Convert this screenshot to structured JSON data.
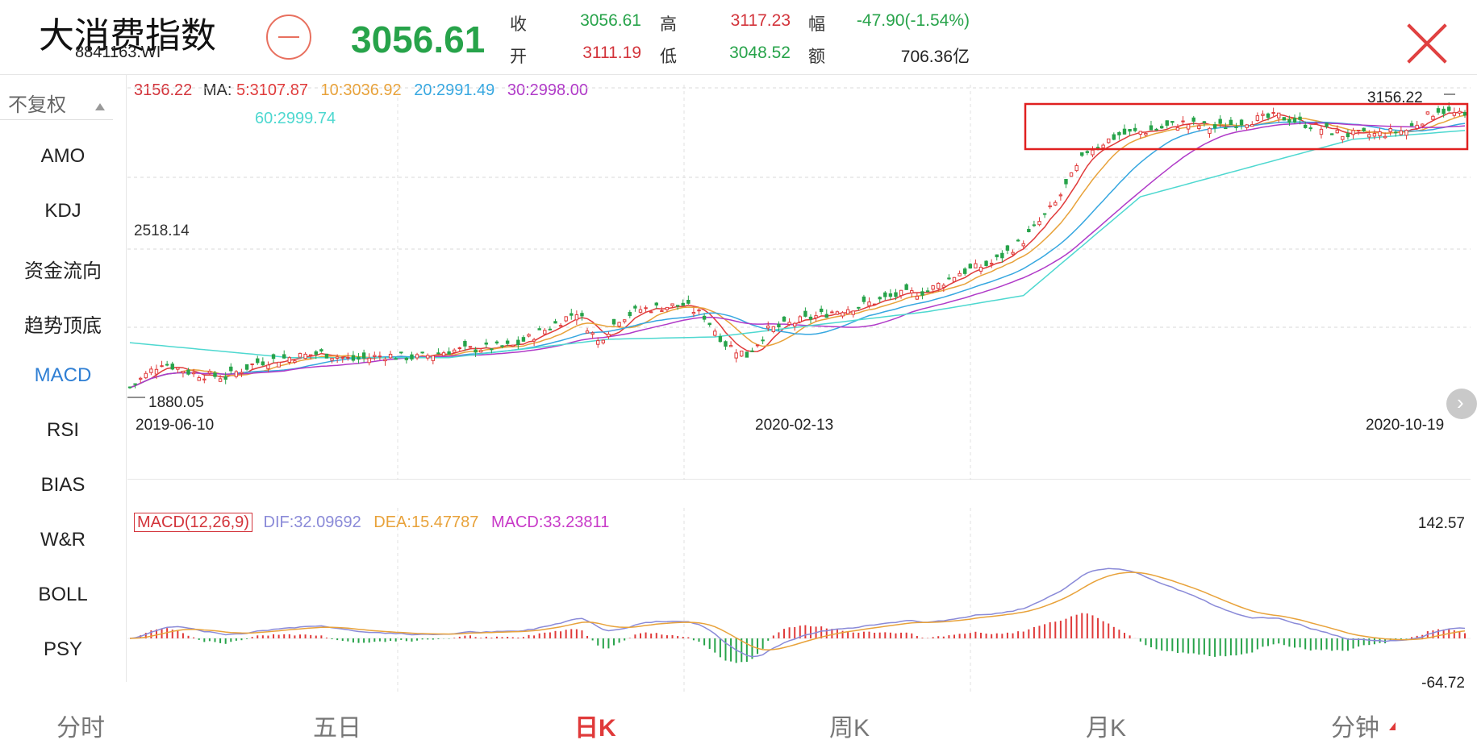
{
  "header": {
    "name": "大消费指数",
    "code": "8841163.WI",
    "price": "3056.61",
    "quote": [
      {
        "label": "收",
        "value": "3056.61",
        "color": "green"
      },
      {
        "label": "高",
        "value": "3117.23",
        "color": "red"
      },
      {
        "label": "幅",
        "value": "-47.90(-1.54%)",
        "color": "green"
      },
      {
        "label": "开",
        "value": "3111.19",
        "color": "red"
      },
      {
        "label": "低",
        "value": "3048.52",
        "color": "green"
      },
      {
        "label": "额",
        "value": "706.36亿",
        "color": "dark"
      }
    ]
  },
  "sidebar": {
    "fq_label": "不复权",
    "items": [
      {
        "label": "AMO"
      },
      {
        "label": "KDJ"
      },
      {
        "label": "资金流向"
      },
      {
        "label": "趋势顶底"
      },
      {
        "label": "MACD",
        "active": true
      },
      {
        "label": "RSI"
      },
      {
        "label": "BIAS"
      },
      {
        "label": "W&R"
      },
      {
        "label": "BOLL"
      },
      {
        "label": "PSY"
      }
    ]
  },
  "ma_legend": {
    "price": "3156.22",
    "prefix": "MA:",
    "ma5": "5:3107.87",
    "ma10": "10:3036.92",
    "ma20": "20:2991.49",
    "ma30": "30:2998.00",
    "ma60": "60:2999.74"
  },
  "macd_legend": {
    "name": "MACD(12,26,9)",
    "dif": "DIF:32.09692",
    "dea": "DEA:15.47787",
    "macd": "MACD:33.23811"
  },
  "colors": {
    "up": "#e03a3a",
    "down": "#27a34a",
    "ma5": "#e03a3a",
    "ma10": "#e8a23a",
    "ma20": "#36a7e0",
    "ma30": "#b03ac8",
    "ma60": "#4ed8d0",
    "dif": "#8a8ad8",
    "dea": "#e8a23a",
    "macd": "#c83ac8"
  },
  "chart_data": [
    {
      "type": "candlestick",
      "x_labels": [
        "2019-06-10",
        "2020-02-13",
        "2020-10-19"
      ],
      "y_labels": [
        "2518.14"
      ],
      "max_label": "3156.22",
      "min_label": "1880.05",
      "ylim": [
        1850,
        3200
      ],
      "trend": [
        [
          0,
          1900
        ],
        [
          6,
          2010
        ],
        [
          12,
          1960
        ],
        [
          18,
          1945
        ],
        [
          24,
          2010
        ],
        [
          30,
          2030
        ],
        [
          36,
          2050
        ],
        [
          42,
          2020
        ],
        [
          48,
          2040
        ],
        [
          54,
          2030
        ],
        [
          60,
          2060
        ],
        [
          66,
          2070
        ],
        [
          72,
          2080
        ],
        [
          78,
          2150
        ],
        [
          84,
          2230
        ],
        [
          88,
          2100
        ],
        [
          92,
          2200
        ],
        [
          96,
          2240
        ],
        [
          100,
          2250
        ],
        [
          104,
          2260
        ],
        [
          108,
          2210
        ],
        [
          112,
          2090
        ],
        [
          116,
          2040
        ],
        [
          120,
          2150
        ],
        [
          126,
          2190
        ],
        [
          132,
          2230
        ],
        [
          138,
          2260
        ],
        [
          144,
          2300
        ],
        [
          150,
          2320
        ],
        [
          156,
          2400
        ],
        [
          162,
          2440
        ],
        [
          168,
          2540
        ],
        [
          174,
          2700
        ],
        [
          180,
          2930
        ],
        [
          186,
          3000
        ],
        [
          192,
          3020
        ],
        [
          198,
          3050
        ],
        [
          204,
          3030
        ],
        [
          210,
          3060
        ],
        [
          216,
          3080
        ],
        [
          222,
          3040
        ],
        [
          228,
          3000
        ],
        [
          234,
          3000
        ],
        [
          240,
          3020
        ],
        [
          246,
          3110
        ],
        [
          252,
          3070
        ]
      ],
      "ma60_trend": [
        [
          0,
          2095
        ],
        [
          30,
          2030
        ],
        [
          60,
          2030
        ],
        [
          90,
          2110
        ],
        [
          110,
          2120
        ],
        [
          150,
          2230
        ],
        [
          168,
          2300
        ],
        [
          190,
          2730
        ],
        [
          230,
          2980
        ],
        [
          252,
          3020
        ]
      ],
      "highlight_box": "top-right"
    },
    {
      "type": "macd",
      "y_max_label": "142.57",
      "y_min_label": "-64.72",
      "ylim": [
        -64.72,
        142.57
      ]
    }
  ],
  "bottomnav": {
    "tabs": [
      {
        "label": "分时"
      },
      {
        "label": "五日"
      },
      {
        "label": "日K",
        "active": true
      },
      {
        "label": "周K"
      },
      {
        "label": "月K"
      },
      {
        "label": "分钟"
      }
    ]
  }
}
